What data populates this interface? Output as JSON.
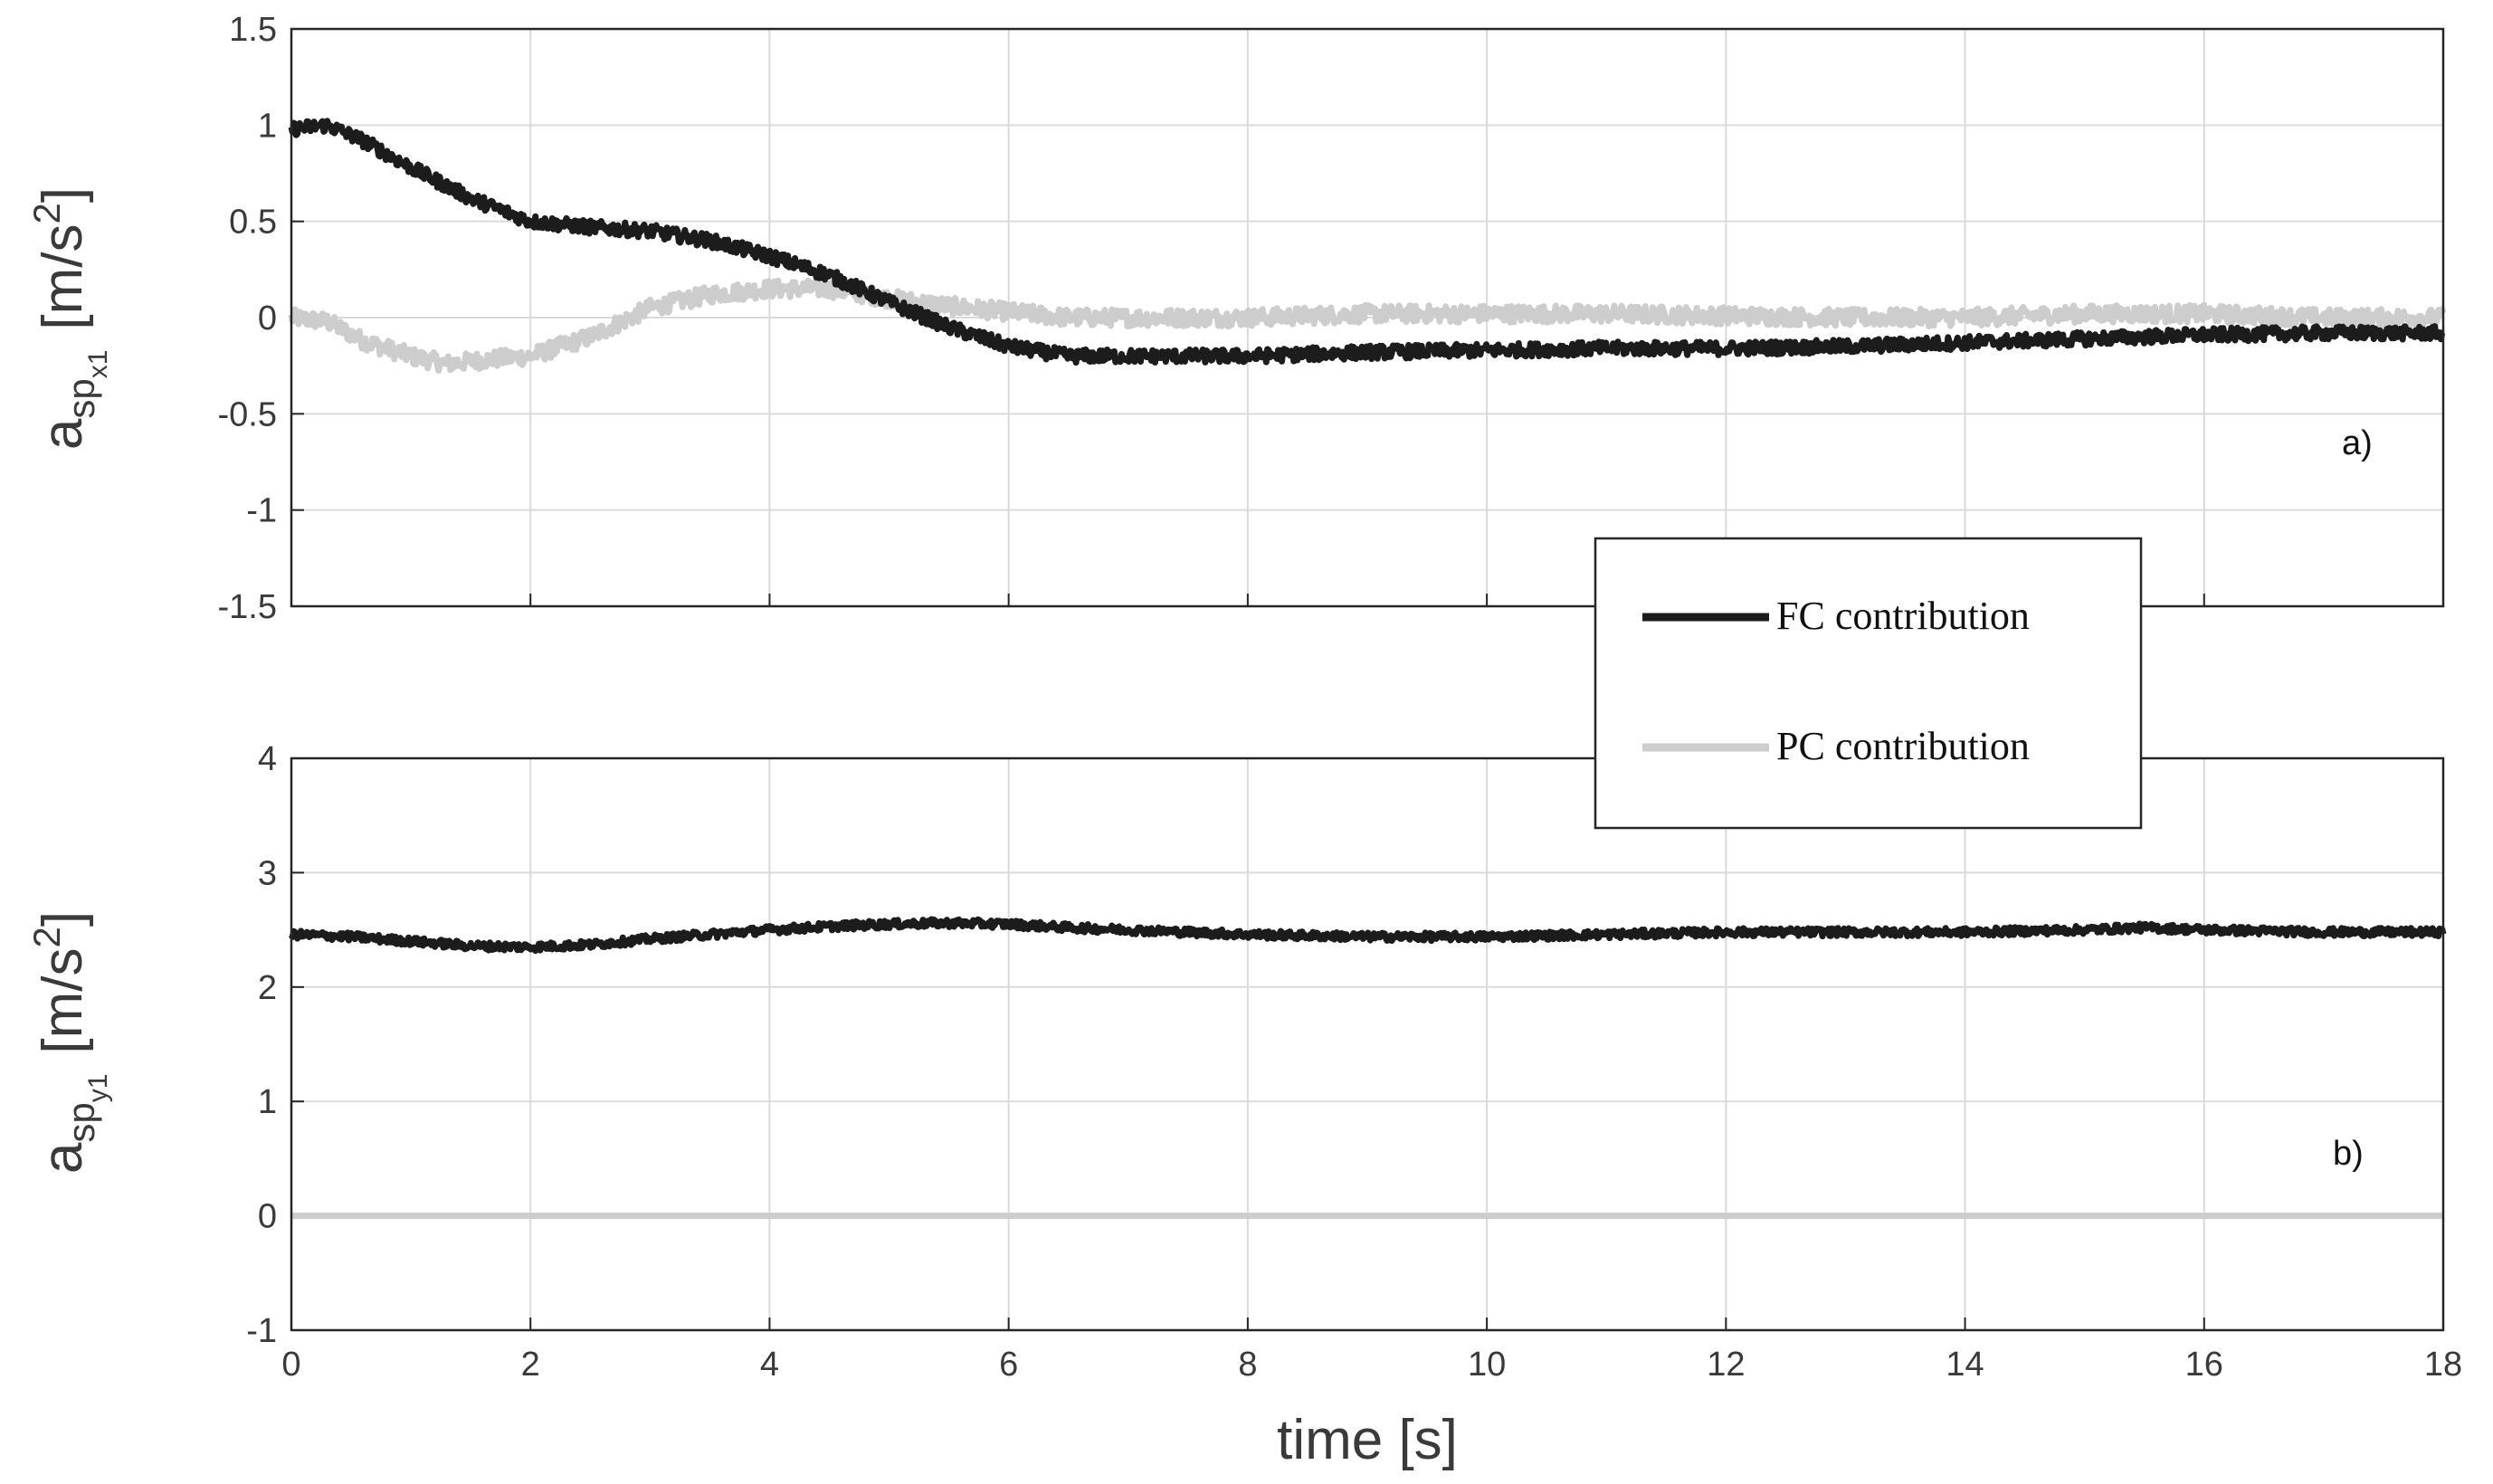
{
  "colors": {
    "fc": "#1c1c1c",
    "pc": "#cdcdcd",
    "grid": "#dadada",
    "axis": "#262626"
  },
  "legend": {
    "fc_label": "FC contribution",
    "pc_label": "PC contribution"
  },
  "xlabel": "time [s]",
  "chart_data": [
    {
      "type": "line",
      "panel_label": "a)",
      "ylabel": {
        "main": "a",
        "sub1": "sp",
        "sub2": "x1",
        "unit_pre": "[m/s",
        "unit_sup": "2",
        "unit_post": "]"
      },
      "xlim": [
        0,
        18
      ],
      "ylim": [
        -1.5,
        1.5
      ],
      "xticks": [
        "0",
        "2",
        "4",
        "6",
        "8",
        "10",
        "12",
        "14",
        "16",
        "18"
      ],
      "yticks": [
        "-1.5",
        "-1",
        "-0.5",
        "0",
        "0.5",
        "1",
        "1.5"
      ],
      "grid": true,
      "series": [
        {
          "name": "FC contribution",
          "x": [
            0,
            0.3,
            0.6,
            1.0,
            1.5,
            2.0,
            2.5,
            3.0,
            3.5,
            4.0,
            4.5,
            5.0,
            5.5,
            6.0,
            6.5,
            7.0,
            8.0,
            9.0,
            10.0,
            11.0,
            12.0,
            13.0,
            14.0,
            15.0,
            16.0,
            17.0,
            18.0
          ],
          "y": [
            0.98,
            1.0,
            0.92,
            0.78,
            0.62,
            0.5,
            0.47,
            0.45,
            0.4,
            0.32,
            0.22,
            0.08,
            -0.05,
            -0.15,
            -0.2,
            -0.2,
            -0.2,
            -0.18,
            -0.17,
            -0.16,
            -0.16,
            -0.15,
            -0.13,
            -0.11,
            -0.09,
            -0.08,
            -0.08
          ],
          "noise": 0.035
        },
        {
          "name": "PC contribution",
          "x": [
            0,
            0.3,
            0.6,
            1.0,
            1.3,
            1.6,
            2.0,
            2.5,
            3.0,
            3.5,
            4.0,
            4.5,
            5.0,
            5.5,
            6.0,
            6.5,
            7.0,
            8.0,
            9.0,
            10.0,
            11.0,
            12.0,
            13.0,
            14.0,
            15.0,
            16.0,
            17.0,
            18.0
          ],
          "y": [
            0.0,
            -0.02,
            -0.12,
            -0.2,
            -0.24,
            -0.22,
            -0.2,
            -0.1,
            0.05,
            0.12,
            0.15,
            0.15,
            0.1,
            0.06,
            0.03,
            0.0,
            0.0,
            0.0,
            0.02,
            0.02,
            0.02,
            0.01,
            0.0,
            0.0,
            0.02,
            0.02,
            0.0,
            0.0
          ],
          "noise": 0.045
        }
      ]
    },
    {
      "type": "line",
      "panel_label": "b)",
      "ylabel": {
        "main": "a",
        "sub1": "sp",
        "sub2": "y1",
        "unit_pre": "[m/s",
        "unit_sup": "2",
        "unit_post": "]"
      },
      "xlim": [
        0,
        18
      ],
      "ylim": [
        -1,
        4
      ],
      "xticks": [
        "0",
        "2",
        "4",
        "6",
        "8",
        "10",
        "12",
        "14",
        "16",
        "18"
      ],
      "yticks": [
        "-1",
        "0",
        "1",
        "2",
        "3",
        "4"
      ],
      "grid": true,
      "series": [
        {
          "name": "FC contribution",
          "x": [
            0,
            0.5,
            1.0,
            1.5,
            2.0,
            2.5,
            3.0,
            3.5,
            4.0,
            4.5,
            5.0,
            5.5,
            6.0,
            6.5,
            7.0,
            8.0,
            9.0,
            10.0,
            11.0,
            12.0,
            13.0,
            14.0,
            15.0,
            15.5,
            16.0,
            17.0,
            18.0
          ],
          "y": [
            2.46,
            2.44,
            2.4,
            2.36,
            2.35,
            2.37,
            2.42,
            2.46,
            2.5,
            2.53,
            2.55,
            2.56,
            2.55,
            2.52,
            2.5,
            2.46,
            2.44,
            2.44,
            2.46,
            2.48,
            2.48,
            2.48,
            2.5,
            2.52,
            2.5,
            2.48,
            2.48
          ],
          "noise": 0.035
        },
        {
          "name": "PC contribution",
          "x": [
            0,
            18
          ],
          "y": [
            0,
            0
          ],
          "noise": 0
        }
      ]
    }
  ]
}
